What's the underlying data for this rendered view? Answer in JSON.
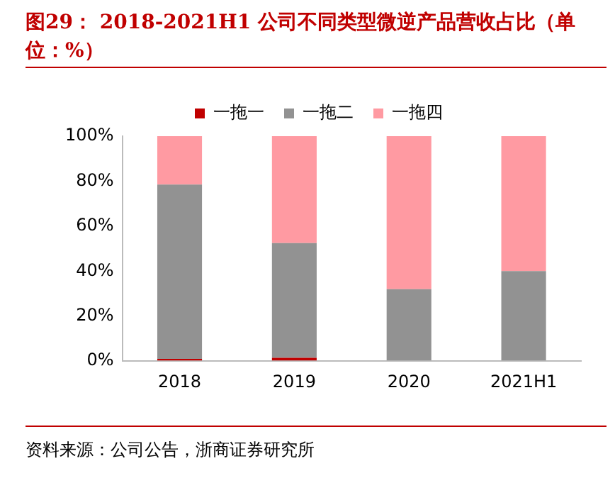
{
  "chart_data": {
    "type": "bar",
    "stacked": true,
    "title": "图29：  2018-2021H1 公司不同类型微逆产品营收占比（单位：%）",
    "categories": [
      "2018",
      "2019",
      "2020",
      "2021H1"
    ],
    "series": [
      {
        "name": "一拖一",
        "color": "#c00000",
        "values": [
          1,
          1.5,
          0,
          0
        ]
      },
      {
        "name": "一拖二",
        "color": "#929292",
        "values": [
          77.5,
          51,
          32,
          40
        ]
      },
      {
        "name": "一拖四",
        "color": "#ff9aa2",
        "values": [
          21.5,
          47.5,
          68,
          60
        ]
      }
    ],
    "ylim": [
      0,
      100
    ],
    "yticks": [
      {
        "value": 0,
        "label": "0%"
      },
      {
        "value": 20,
        "label": "20%"
      },
      {
        "value": 40,
        "label": "40%"
      },
      {
        "value": 60,
        "label": "60%"
      },
      {
        "value": 80,
        "label": "80%"
      },
      {
        "value": 100,
        "label": "100%"
      }
    ],
    "grid": false,
    "legend": "top",
    "annotations": [
      "资料来源：公司公告，浙商证券研究所"
    ]
  }
}
